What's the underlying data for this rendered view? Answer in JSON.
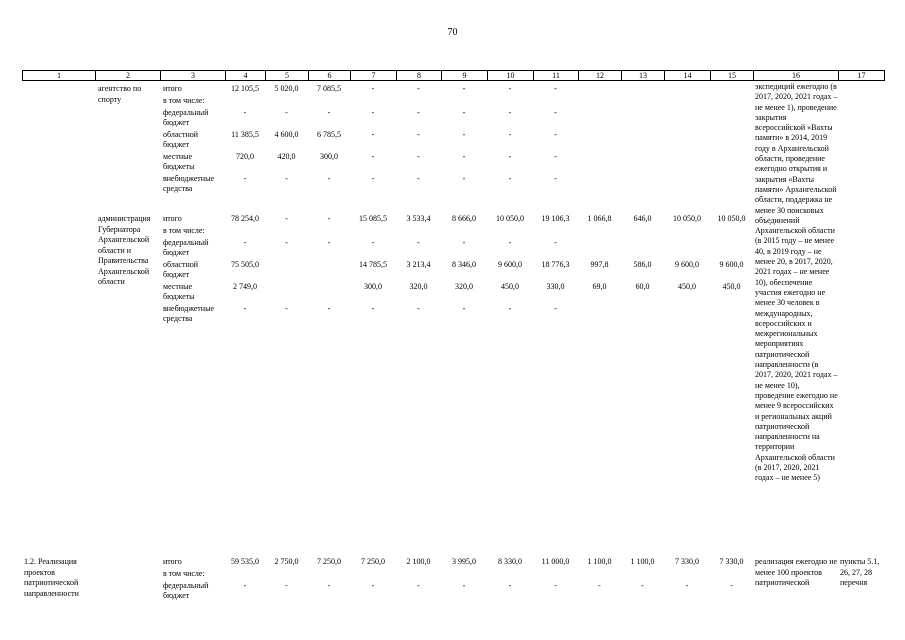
{
  "page": {
    "number": "70"
  },
  "table": {
    "column_numbers": [
      "1",
      "2",
      "3",
      "4",
      "5",
      "6",
      "7",
      "8",
      "9",
      "10",
      "11",
      "12",
      "13",
      "14",
      "15",
      "16",
      "17"
    ],
    "continuation_note": "экспедиций ежегодно (в 2017, 2020, 2021 годах – не менее 1), проведение закрытия всероссийской «Вахты памяти» в 2014, 2019 году в Архангельской области, проведение ежегодно открытия и закрытия «Вахты памяти» Архангельской области, поддержка не менее 30 поисковых объединений Архангельской области (в 2015 году – не менее 40, в 2019 году – не менее 20, в 2017, 2020, 2021 годах – не менее 10), обеспечение участия ежегодно не менее 30 человек в международных, всероссийских и межрегиональных мероприятиях патриотической направленности (в 2017, 2020, 2021 годах – не менее 10), проведение ежегодно не менее 9 всероссийских и региональных акций патриотической направленности на территории Архангельской области (в 2017, 2020, 2021 годах – не менее 5)",
    "groups": [
      {
        "col1_text": "",
        "col2_text": "агентство по спорту",
        "col16_text": "",
        "col17_text": "",
        "rows": [
          {
            "label": "итого",
            "values": [
              "12 105,5",
              "5 020,0",
              "7 085,5",
              "-",
              "-",
              "-",
              "-",
              "-",
              "",
              "",
              "",
              ""
            ]
          },
          {
            "label": "в том числе:",
            "values": [
              "",
              "",
              "",
              "",
              "",
              "",
              "",
              "",
              "",
              "",
              "",
              ""
            ]
          },
          {
            "label": "федеральный бюджет",
            "values": [
              "-",
              "-",
              "-",
              "-",
              "-",
              "-",
              "-",
              "-",
              "",
              "",
              "",
              ""
            ]
          },
          {
            "label": "областной бюджет",
            "values": [
              "11 385,5",
              "4 600,0",
              "6 785,5",
              "-",
              "-",
              "-",
              "-",
              "-",
              "",
              "",
              "",
              ""
            ]
          },
          {
            "label": "местные бюджеты",
            "values": [
              "720,0",
              "420,0",
              "300,0",
              "-",
              "-",
              "-",
              "-",
              "-",
              "",
              "",
              "",
              ""
            ]
          },
          {
            "label": "внебюджетные средства",
            "values": [
              "-",
              "-",
              "-",
              "-",
              "-",
              "-",
              "-",
              "-",
              "",
              "",
              "",
              ""
            ]
          }
        ]
      },
      {
        "col1_text": "",
        "col2_text": "администрация Губернатора Архангельской области и Правительства Архангельской области",
        "col16_text": "",
        "col17_text": "",
        "rows": [
          {
            "label": "итого",
            "values": [
              "78 254,0",
              "-",
              "-",
              "15 085,5",
              "3 533,4",
              "8 666,0",
              "10 050,0",
              "19 106,3",
              "1 066,8",
              "646,0",
              "10 050,0",
              "10 050,0"
            ]
          },
          {
            "label": "в том числе:",
            "values": [
              "",
              "",
              "",
              "",
              "",
              "",
              "",
              "",
              "",
              "",
              "",
              ""
            ]
          },
          {
            "label": "федеральный бюджет",
            "values": [
              "-",
              "-",
              "-",
              "-",
              "-",
              "-",
              "-",
              "-",
              "",
              "",
              "",
              ""
            ]
          },
          {
            "label": "областной бюджет",
            "values": [
              "75 505,0",
              "",
              "",
              "14 785,5",
              "3 213,4",
              "8 346,0",
              "9 600,0",
              "18 776,3",
              "997,8",
              "586,0",
              "9 600,0",
              "9 600,0"
            ]
          },
          {
            "label": "местные бюджеты",
            "values": [
              "2 749,0",
              "",
              "",
              "300,0",
              "320,0",
              "320,0",
              "450,0",
              "330,0",
              "69,0",
              "60,0",
              "450,0",
              "450,0"
            ]
          },
          {
            "label": "внебюджетные средства",
            "values": [
              "-",
              "-",
              "-",
              "-",
              "-",
              "-",
              "-",
              "-",
              "",
              "",
              "",
              ""
            ]
          }
        ]
      },
      {
        "col1_text": "1.2. Реализация проектов патриотической направленности",
        "col2_text": "",
        "col16_text": "реализация ежегодно не менее 100 проектов патриотической",
        "col17_text": "пункты 5.1, 26, 27, 28 перечня",
        "rows": [
          {
            "label": "итого",
            "values": [
              "59 535,0",
              "2 750,0",
              "7 250,0",
              "7 250,0",
              "2 100,0",
              "3 995,0",
              "8 330,0",
              "11 000,0",
              "1 100,0",
              "1 100,0",
              "7 330,0",
              "7 330,0"
            ]
          },
          {
            "label": "в том числе:",
            "values": [
              "",
              "",
              "",
              "",
              "",
              "",
              "",
              "",
              "",
              "",
              "",
              ""
            ]
          },
          {
            "label": "федеральный бюджет",
            "values": [
              "-",
              "-",
              "-",
              "-",
              "-",
              "-",
              "-",
              "-",
              "-",
              "-",
              "-",
              "-"
            ]
          }
        ]
      }
    ]
  }
}
